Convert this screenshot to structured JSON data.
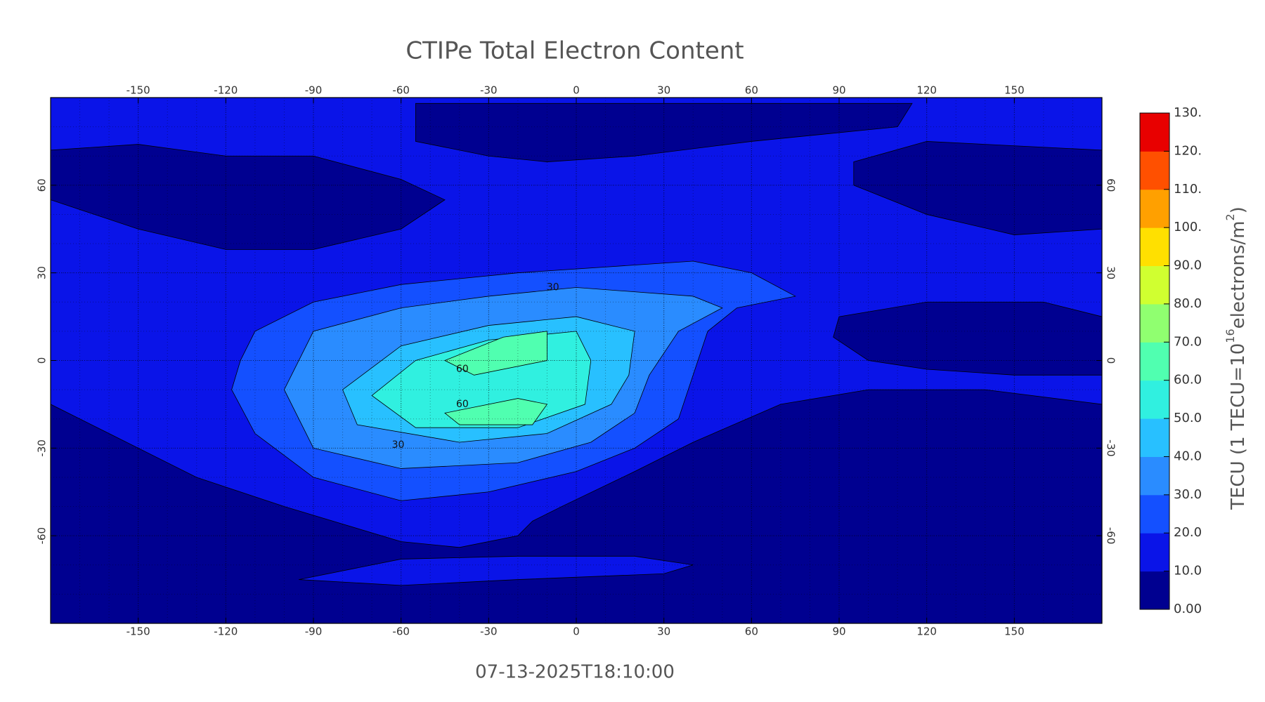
{
  "chart_data": {
    "type": "contour",
    "title": "CTIPe Total Electron Content",
    "footer": "07-13-2025T18:10:00",
    "xlim": [
      -180,
      180
    ],
    "ylim": [
      -90,
      90
    ],
    "xticks": [
      -150,
      -120,
      -90,
      -60,
      -30,
      0,
      30,
      60,
      90,
      120,
      150
    ],
    "yticks": [
      -60,
      -30,
      0,
      30,
      60
    ],
    "grid": true,
    "contour_labels": [
      30,
      30,
      60,
      60
    ],
    "colorbar": {
      "label": [
        "TECU (1 TECU=10",
        "16",
        "electrons/m",
        "2",
        ")"
      ],
      "lim": [
        0,
        130
      ],
      "ticks": [
        {
          "value": 0,
          "label": "0.00"
        },
        {
          "value": 10,
          "label": "10.0"
        },
        {
          "value": 20,
          "label": "20.0"
        },
        {
          "value": 30,
          "label": "30.0"
        },
        {
          "value": 40,
          "label": "40.0"
        },
        {
          "value": 50,
          "label": "50.0"
        },
        {
          "value": 60,
          "label": "60.0"
        },
        {
          "value": 70,
          "label": "70.0"
        },
        {
          "value": 80,
          "label": "80.0"
        },
        {
          "value": 90,
          "label": "90.0"
        },
        {
          "value": 100,
          "label": "100."
        },
        {
          "value": 110,
          "label": "110."
        },
        {
          "value": 120,
          "label": "120."
        },
        {
          "value": 130,
          "label": "130."
        }
      ],
      "colors": [
        "#000090",
        "#0a14e8",
        "#1450ff",
        "#2a8cff",
        "#28c0ff",
        "#30f0e0",
        "#50ffb0",
        "#90ff70",
        "#d0ff30",
        "#ffe000",
        "#ffa000",
        "#ff5000",
        "#e80000"
      ]
    }
  }
}
